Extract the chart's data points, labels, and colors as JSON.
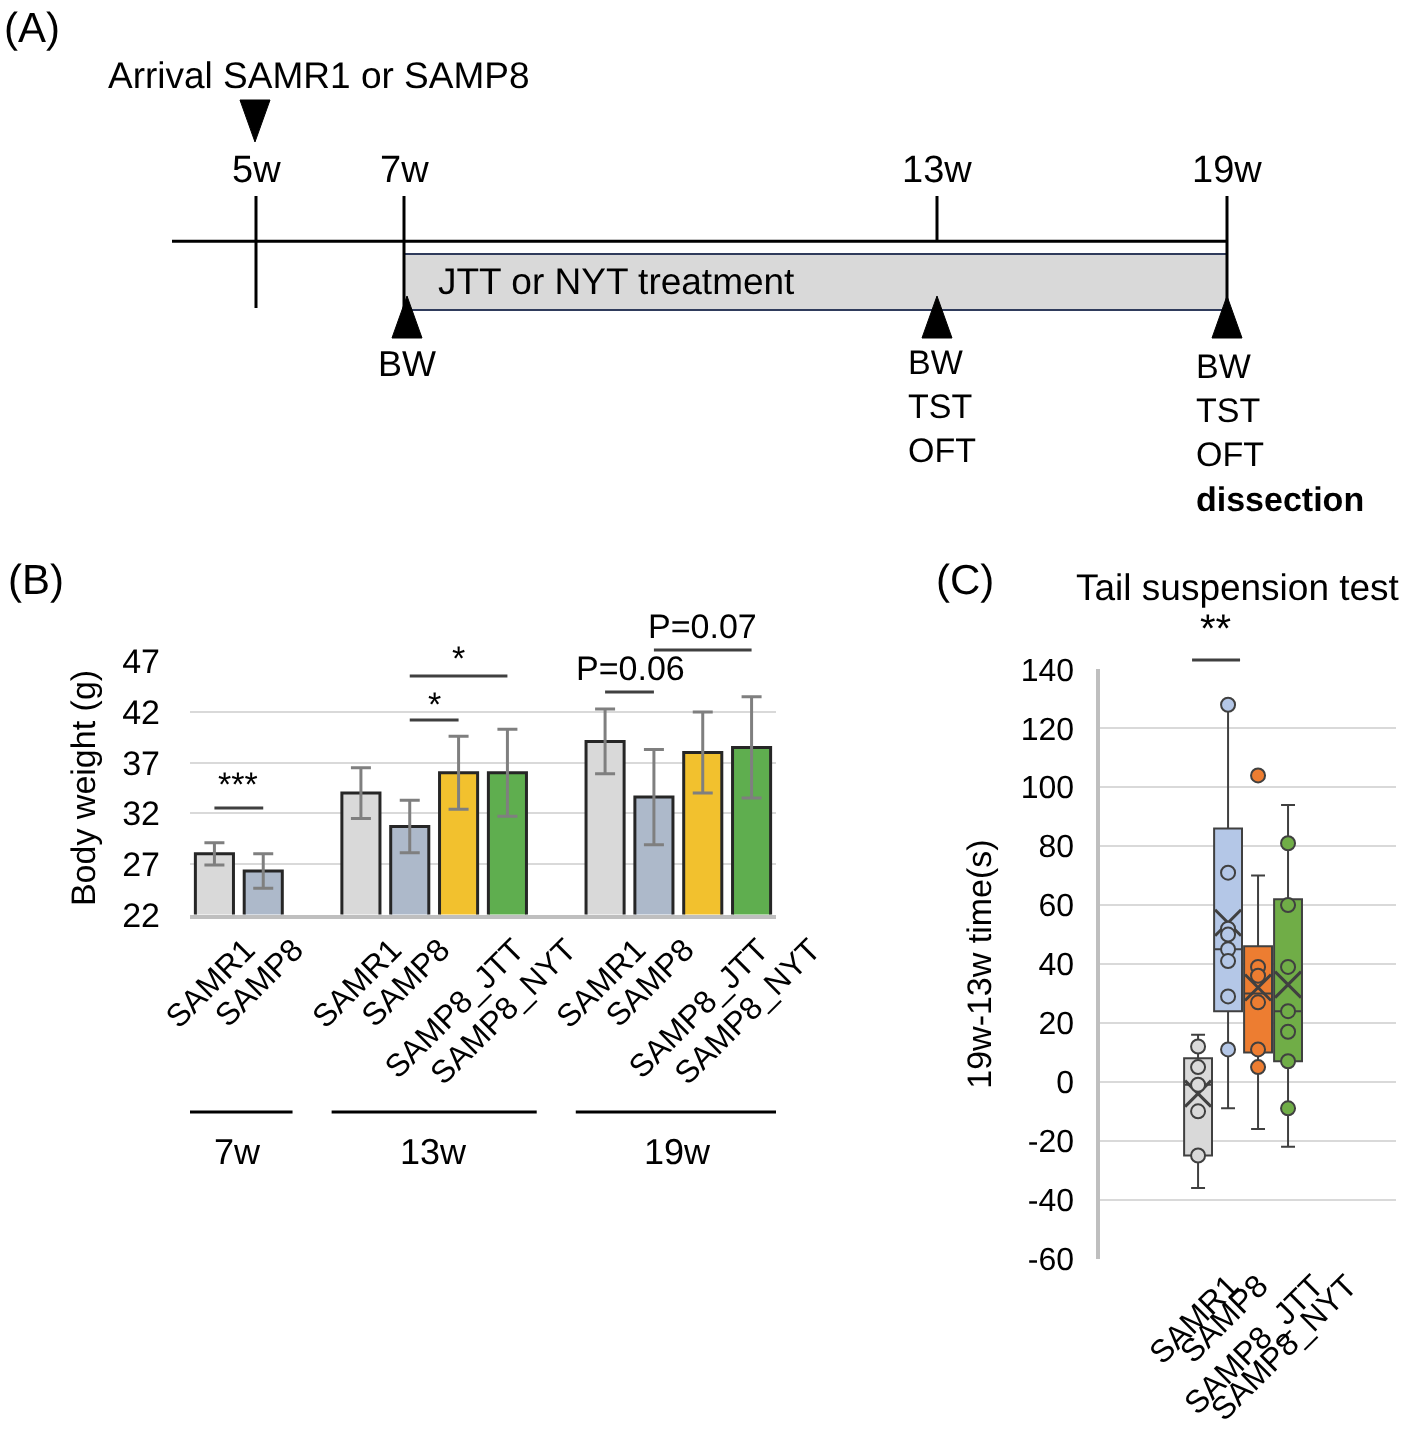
{
  "chart_data": [
    {
      "type": "other",
      "title": "(A)",
      "annotations": [
        "Arrival SAMR1 or SAMP8",
        "5w",
        "7w",
        "13w",
        "19w",
        "JTT or NYT treatment",
        "BW",
        "BW\nTST\nOFT",
        "BW\nTST\nOFT\ndissection"
      ]
    },
    {
      "type": "bar",
      "title": "(B)",
      "ylabel": "Body weight (g)",
      "categories": [
        "SAMR1",
        "SAMP8",
        null,
        "SAMR1",
        "SAMP8",
        "SAMP8_JTT",
        "SAMP8_NYT",
        null,
        "SAMR1",
        "SAMP8",
        "SAMP8_JTT",
        "SAMP8_NYT"
      ],
      "values": [
        28.0,
        26.3,
        null,
        34.0,
        30.7,
        36.0,
        36.0,
        null,
        39.1,
        33.6,
        38.0,
        38.5
      ],
      "errors": [
        1.1,
        1.7,
        null,
        2.5,
        2.6,
        3.6,
        4.3,
        null,
        3.2,
        4.7,
        4.0,
        5.0
      ],
      "colors": [
        "#d9d9d9",
        "#adb9ca",
        null,
        "#d9d9d9",
        "#adb9ca",
        "#f2c12e",
        "#5fae4f",
        null,
        "#d9d9d9",
        "#adb9ca",
        "#f2c12e",
        "#5fae4f"
      ],
      "ylim": [
        22,
        47
      ],
      "yticks": [
        22,
        27,
        32,
        37,
        42,
        47
      ],
      "grid": "y",
      "annotations": [
        "7w",
        "13w",
        "19w",
        "***",
        "*",
        "*",
        "P=0.06",
        "P=0.07"
      ]
    },
    {
      "type": "box",
      "title": "(C)",
      "subtitle": "Tail suspension test",
      "ylabel": "19w-13w time(s)",
      "categories": [
        "SAMR1",
        "SAMP8",
        "SAMP8_JTT",
        "SAMP8_NYT"
      ],
      "colors": [
        "#d9d9d9",
        "#b4c7e7",
        "#ed7d31",
        "#70ad47"
      ],
      "boxes": [
        {
          "low": -36,
          "q1": -25,
          "median": -1,
          "q3": 8,
          "high": 16,
          "mean": -4
        },
        {
          "low": -9,
          "q1": 24,
          "median": 45,
          "q3": 86,
          "high": 128,
          "mean": 54
        },
        {
          "low": -16,
          "q1": 10,
          "median": 30,
          "q3": 46,
          "high": 70,
          "mean": 32
        },
        {
          "low": -22,
          "q1": 7,
          "median": 24,
          "q3": 62,
          "high": 94,
          "mean": 33
        }
      ],
      "series": [
        {
          "type": "scatter",
          "color": "#d9d9d9",
          "x": [
            "SAMR1",
            "SAMR1",
            "SAMR1",
            "SAMR1",
            "SAMR1"
          ],
          "values": [
            12,
            5,
            -1,
            -10,
            -25
          ]
        },
        {
          "type": "scatter",
          "color": "#b4c7e7",
          "x": [
            "SAMP8",
            "SAMP8",
            "SAMP8",
            "SAMP8",
            "SAMP8",
            "SAMP8",
            "SAMP8",
            "SAMP8"
          ],
          "values": [
            128,
            71,
            52,
            50,
            45,
            41,
            29,
            11
          ]
        },
        {
          "type": "scatter",
          "color": "#ed7d31",
          "x": [
            "SAMP8_JTT",
            "SAMP8_JTT",
            "SAMP8_JTT",
            "SAMP8_JTT",
            "SAMP8_JTT",
            "SAMP8_JTT"
          ],
          "values": [
            104,
            39,
            36,
            27,
            11,
            5
          ]
        },
        {
          "type": "scatter",
          "color": "#70ad47",
          "x": [
            "SAMP8_NYT",
            "SAMP8_NYT",
            "SAMP8_NYT",
            "SAMP8_NYT",
            "SAMP8_NYT",
            "SAMP8_NYT",
            "SAMP8_NYT"
          ],
          "values": [
            81,
            60,
            39,
            24,
            17,
            7,
            -9
          ]
        }
      ],
      "ylim": [
        -60,
        140
      ],
      "yticks": [
        -60,
        -40,
        -20,
        0,
        20,
        40,
        60,
        80,
        100,
        120,
        140
      ],
      "grid": "y",
      "marker": "circle",
      "annotations": [
        "**"
      ]
    }
  ]
}
